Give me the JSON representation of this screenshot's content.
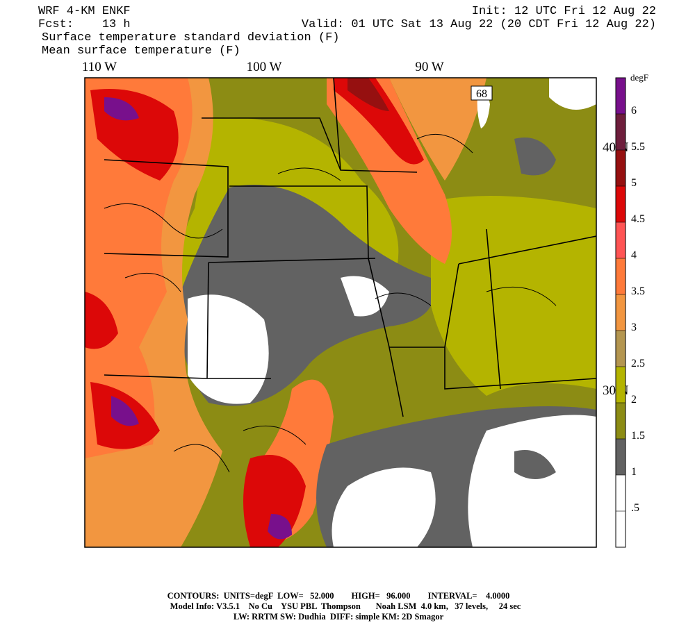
{
  "header": {
    "model": "WRF 4-KM ENKF",
    "init": "Init: 12 UTC Fri 12 Aug 22",
    "forecast": "Fcst:    13 h",
    "valid": "Valid: 01 UTC Sat 13 Aug 22 (20 CDT Fri 12 Aug 22)",
    "shaded_field": "Surface temperature standard deviation (F)",
    "contour_field": "Mean surface temperature (F)"
  },
  "map": {
    "lon_labels": [
      "110 W",
      "100 W",
      "90 W"
    ],
    "lat_labels": [
      "40 N",
      "30 N"
    ],
    "route_label": "68"
  },
  "colorbar": {
    "unit": "degF",
    "range": [
      0,
      6.5
    ],
    "ticks": [
      {
        "value": 0.5,
        "label": ".5"
      },
      1,
      1.5,
      2,
      2.5,
      3,
      3.5,
      4,
      4.5,
      5,
      5.5,
      6
    ],
    "colors": [
      "#ffffff",
      "#ffffff",
      "#626262",
      "#8c8c14",
      "#b4b400",
      "#b49650",
      "#f29640",
      "#ff7a3a",
      "#ff5454",
      "#dc0808",
      "#961010",
      "#6e1e3c",
      "#78108c"
    ]
  },
  "footer": {
    "contours": "CONTOURS:  UNITS=degF  LOW=   52.000        HIGH=   96.000        INTERVAL=    4.0000",
    "model_info": "Model Info: V3.5.1    No Cu    YSU PBL  Thompson       Noah LSM  4.0 km,   37 levels,     24 sec",
    "physics": "LW: RRTM SW: Dudhia  DIFF: simple KM: 2D Smagor"
  }
}
